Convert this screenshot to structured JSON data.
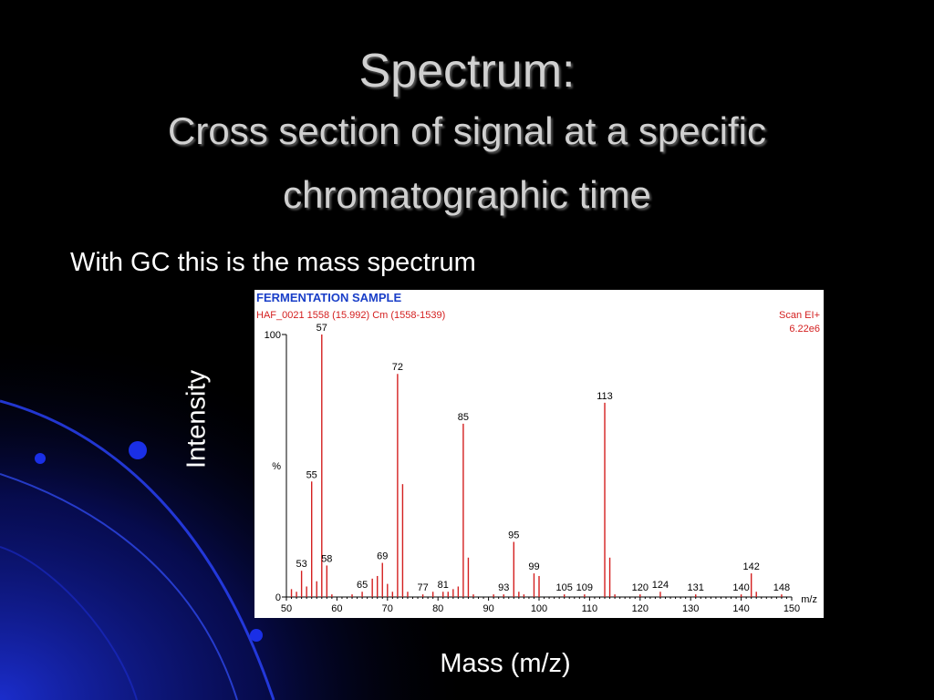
{
  "slide": {
    "title": "Spectrum:",
    "subtitle_line1": "Cross section of signal at a specific",
    "subtitle_line2": "chromatographic time",
    "bullet": "With GC this is the mass spectrum",
    "y_caption": "Intensity",
    "x_caption": "Mass (m/z)"
  },
  "colors": {
    "background": "#000000",
    "header_blue": "#1a3fc8",
    "peak_red": "#d42020",
    "deco_blue": "#1c2fd6"
  },
  "chart_data": {
    "type": "bar",
    "title": "FERMENTATION SAMPLE",
    "header_left": "HAF_0021 1558 (15.992) Cm (1558-1539)",
    "header_right_line1": "Scan EI+",
    "header_right_line2": "6.22e6",
    "xlabel": "m/z",
    "ylabel": "%",
    "xlim": [
      50,
      150
    ],
    "ylim": [
      0,
      100
    ],
    "x_ticks": [
      50,
      60,
      70,
      80,
      90,
      100,
      110,
      120,
      130,
      140,
      150
    ],
    "y_ticks": [
      0,
      100
    ],
    "peaks": [
      {
        "mz": 51,
        "intensity": 3
      },
      {
        "mz": 52,
        "intensity": 2
      },
      {
        "mz": 53,
        "intensity": 10,
        "label": "53"
      },
      {
        "mz": 54,
        "intensity": 4
      },
      {
        "mz": 55,
        "intensity": 44,
        "label": "55"
      },
      {
        "mz": 56,
        "intensity": 6
      },
      {
        "mz": 57,
        "intensity": 100,
        "label": "57"
      },
      {
        "mz": 58,
        "intensity": 12,
        "label": "58"
      },
      {
        "mz": 59,
        "intensity": 1
      },
      {
        "mz": 63,
        "intensity": 1
      },
      {
        "mz": 65,
        "intensity": 2,
        "label": "65"
      },
      {
        "mz": 67,
        "intensity": 7
      },
      {
        "mz": 68,
        "intensity": 8
      },
      {
        "mz": 69,
        "intensity": 13,
        "label": "69"
      },
      {
        "mz": 70,
        "intensity": 5
      },
      {
        "mz": 71,
        "intensity": 2
      },
      {
        "mz": 72,
        "intensity": 85,
        "label": "72"
      },
      {
        "mz": 73,
        "intensity": 43
      },
      {
        "mz": 74,
        "intensity": 2
      },
      {
        "mz": 77,
        "intensity": 1,
        "label": "77"
      },
      {
        "mz": 79,
        "intensity": 2
      },
      {
        "mz": 81,
        "intensity": 2,
        "label": "81"
      },
      {
        "mz": 82,
        "intensity": 2
      },
      {
        "mz": 83,
        "intensity": 3
      },
      {
        "mz": 84,
        "intensity": 4
      },
      {
        "mz": 85,
        "intensity": 66,
        "label": "85"
      },
      {
        "mz": 86,
        "intensity": 15
      },
      {
        "mz": 87,
        "intensity": 1
      },
      {
        "mz": 91,
        "intensity": 1
      },
      {
        "mz": 93,
        "intensity": 1,
        "label": "93"
      },
      {
        "mz": 95,
        "intensity": 21,
        "label": "95"
      },
      {
        "mz": 96,
        "intensity": 2
      },
      {
        "mz": 97,
        "intensity": 1
      },
      {
        "mz": 99,
        "intensity": 9,
        "label": "99"
      },
      {
        "mz": 100,
        "intensity": 8
      },
      {
        "mz": 105,
        "intensity": 1,
        "label": "105"
      },
      {
        "mz": 109,
        "intensity": 1,
        "label": "109"
      },
      {
        "mz": 113,
        "intensity": 74,
        "label": "113"
      },
      {
        "mz": 114,
        "intensity": 15
      },
      {
        "mz": 115,
        "intensity": 1
      },
      {
        "mz": 120,
        "intensity": 1,
        "label": "120"
      },
      {
        "mz": 124,
        "intensity": 2,
        "label": "124"
      },
      {
        "mz": 131,
        "intensity": 1,
        "label": "131"
      },
      {
        "mz": 140,
        "intensity": 1,
        "label": "140"
      },
      {
        "mz": 142,
        "intensity": 9,
        "label": "142"
      },
      {
        "mz": 143,
        "intensity": 2
      },
      {
        "mz": 148,
        "intensity": 1,
        "label": "148"
      }
    ]
  }
}
